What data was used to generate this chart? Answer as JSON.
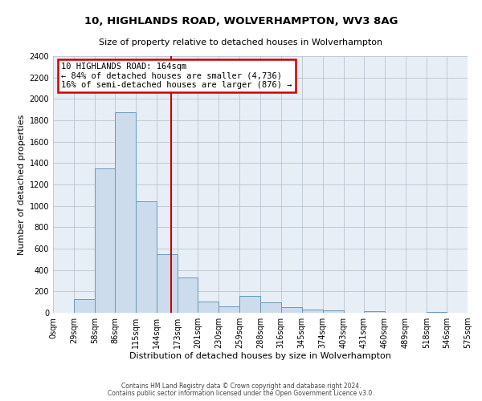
{
  "title": "10, HIGHLANDS ROAD, WOLVERHAMPTON, WV3 8AG",
  "subtitle": "Size of property relative to detached houses in Wolverhampton",
  "xlabel": "Distribution of detached houses by size in Wolverhampton",
  "ylabel": "Number of detached properties",
  "bin_edges": [
    0,
    29,
    58,
    86,
    115,
    144,
    173,
    201,
    230,
    259,
    288,
    316,
    345,
    374,
    403,
    431,
    460,
    489,
    518,
    546,
    575
  ],
  "bar_heights": [
    0,
    125,
    1350,
    1875,
    1040,
    545,
    330,
    105,
    60,
    155,
    100,
    55,
    28,
    20,
    0,
    18,
    0,
    0,
    10,
    0
  ],
  "bar_color": "#ccdcec",
  "bar_edgecolor": "#6699bb",
  "vline_x": 164,
  "vline_color": "#cc0000",
  "annotation_title": "10 HIGHLANDS ROAD: 164sqm",
  "annotation_line1": "← 84% of detached houses are smaller (4,736)",
  "annotation_line2": "16% of semi-detached houses are larger (876) →",
  "annotation_box_edgecolor": "#cc0000",
  "ylim": [
    0,
    2400
  ],
  "yticks": [
    0,
    200,
    400,
    600,
    800,
    1000,
    1200,
    1400,
    1600,
    1800,
    2000,
    2200,
    2400
  ],
  "tick_labels": [
    "0sqm",
    "29sqm",
    "58sqm",
    "86sqm",
    "115sqm",
    "144sqm",
    "173sqm",
    "201sqm",
    "230sqm",
    "259sqm",
    "288sqm",
    "316sqm",
    "345sqm",
    "374sqm",
    "403sqm",
    "431sqm",
    "460sqm",
    "489sqm",
    "518sqm",
    "546sqm",
    "575sqm"
  ],
  "footer1": "Contains HM Land Registry data © Crown copyright and database right 2024.",
  "footer2": "Contains public sector information licensed under the Open Government Licence v3.0.",
  "background_color": "#ffffff",
  "plot_bg_color": "#e8eef5",
  "grid_color": "#b0bcc8",
  "title_fontsize": 9.5,
  "subtitle_fontsize": 8,
  "axis_label_fontsize": 8,
  "tick_fontsize": 7,
  "footer_fontsize": 5.5
}
